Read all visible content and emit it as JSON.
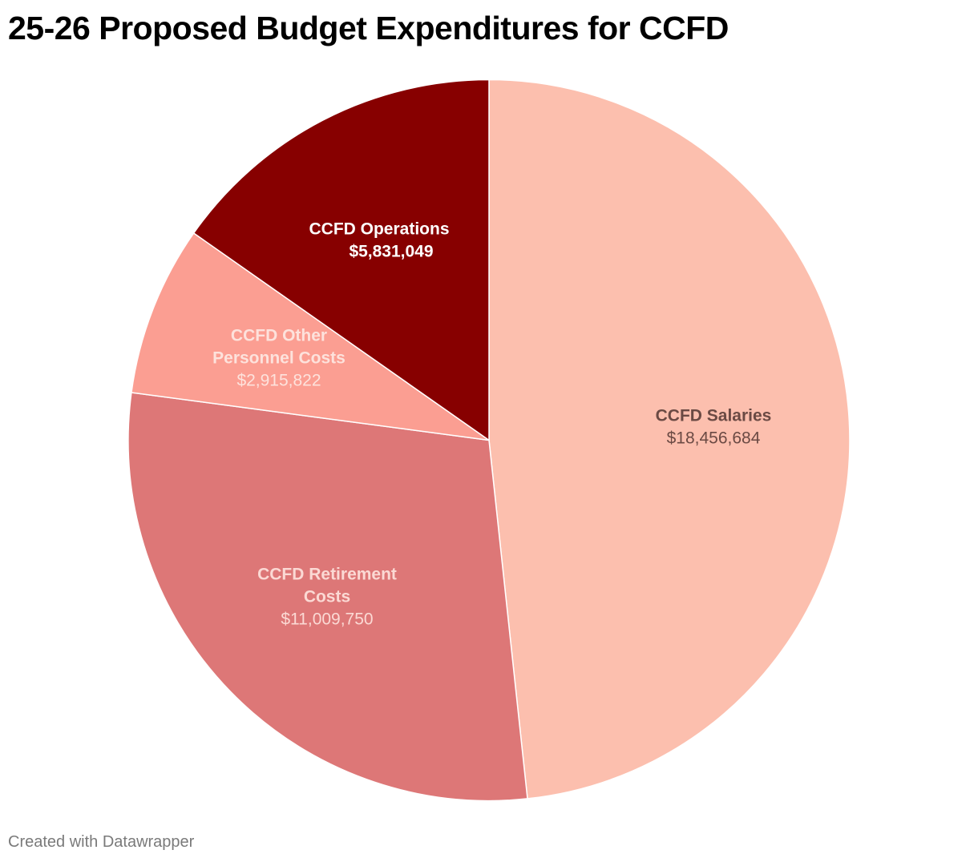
{
  "chart_data": {
    "type": "pie",
    "title": "25-26 Proposed Budget Expenditures for CCFD",
    "start_angle_deg": 0,
    "direction": "clockwise",
    "slices": [
      {
        "id": "salaries",
        "label_lines": [
          "CCFD Salaries"
        ],
        "value": 18456684,
        "value_label": "$18,456,684",
        "color": "#fcbfae",
        "label_color": "#6b4a44",
        "value_color": "#6b4a44"
      },
      {
        "id": "retirement",
        "label_lines": [
          "CCFD Retirement",
          "Costs"
        ],
        "value": 11009750,
        "value_label": "$11,009,750",
        "color": "#dd7777",
        "label_color": "#fbd9d4",
        "value_color": "#fbd9d4"
      },
      {
        "id": "other-personnel",
        "label_lines": [
          "CCFD Other",
          "Personnel Costs"
        ],
        "value": 2915822,
        "value_label": "$2,915,822",
        "color": "#fb9e92",
        "label_color": "#fde2dc",
        "value_color": "#fde2dc"
      },
      {
        "id": "operations",
        "label_lines": [
          "CCFD Operations"
        ],
        "value": 5831049,
        "value_label": "$5,831,049",
        "color": "#870000",
        "label_color": "#ffffff",
        "value_color": "#ffffff"
      }
    ]
  },
  "footer": {
    "credit": "Created with Datawrapper"
  }
}
